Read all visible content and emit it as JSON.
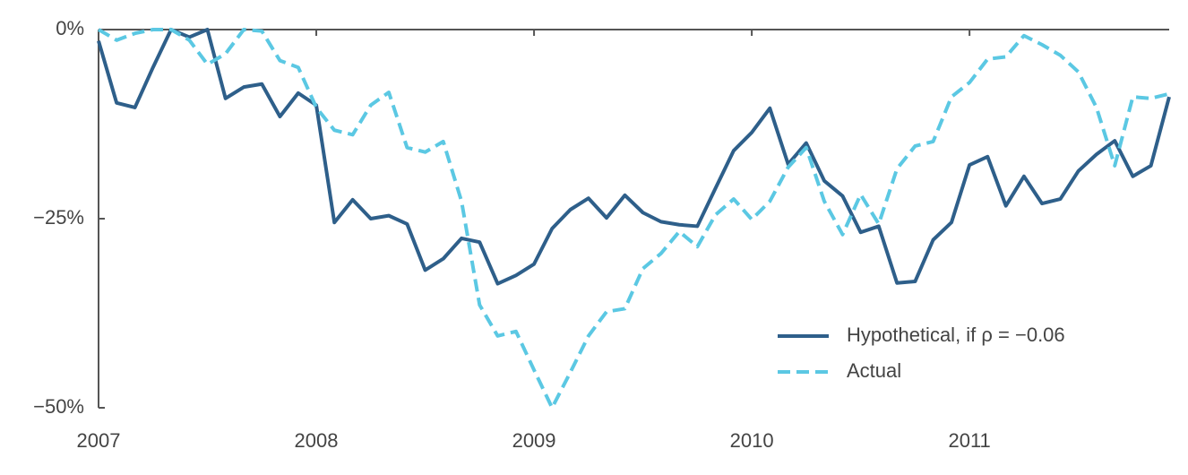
{
  "chart_data": {
    "type": "line",
    "x": [
      2007,
      2007.083,
      2007.167,
      2007.25,
      2007.333,
      2007.417,
      2007.5,
      2007.583,
      2007.667,
      2007.75,
      2007.833,
      2007.917,
      2008,
      2008.083,
      2008.167,
      2008.25,
      2008.333,
      2008.417,
      2008.5,
      2008.583,
      2008.667,
      2008.75,
      2008.833,
      2008.917,
      2009,
      2009.083,
      2009.167,
      2009.25,
      2009.333,
      2009.417,
      2009.5,
      2009.583,
      2009.667,
      2009.75,
      2009.833,
      2009.917,
      2010,
      2010.083,
      2010.167,
      2010.25,
      2010.333,
      2010.417,
      2010.5,
      2010.583,
      2010.667,
      2010.75,
      2010.833,
      2010.917,
      2011,
      2011.083,
      2011.167,
      2011.25,
      2011.333,
      2011.417,
      2011.5,
      2011.583,
      2011.667,
      2011.75,
      2011.833,
      2011.917
    ],
    "series": [
      {
        "name": "Hypothetical, if ρ = −0.06",
        "color": "#2e5f8a",
        "dash": false,
        "values": [
          -1.5,
          -9.7,
          -10.3,
          -5,
          0,
          -1,
          0,
          -9.1,
          -7.6,
          -7.2,
          -11.5,
          -8.4,
          -10,
          -25.5,
          -22.5,
          -25,
          -24.6,
          -25.7,
          -31.8,
          -30.3,
          -27.6,
          -28.1,
          -33.6,
          -32.5,
          -31,
          -26.3,
          -23.8,
          -22.3,
          -24.9,
          -21.9,
          -24.2,
          -25.4,
          -25.8,
          -26,
          -21,
          -16,
          -13.6,
          -10.4,
          -17.8,
          -15,
          -20,
          -22,
          -26.8,
          -26,
          -33.5,
          -33.3,
          -27.8,
          -25.5,
          -17.9,
          -16.8,
          -23.3,
          -19.4,
          -23,
          -22.4,
          -18.7,
          -16.5,
          -14.7,
          -19.4,
          -18,
          -8.9
        ]
      },
      {
        "name": "Actual",
        "color": "#5bc8e3",
        "dash": true,
        "values": [
          0,
          -1.4,
          -0.5,
          0,
          0,
          -1.4,
          -4.6,
          -3.2,
          0,
          -0.2,
          -4.1,
          -5,
          -10.3,
          -13.3,
          -13.9,
          -10,
          -8.3,
          -15.6,
          -16.2,
          -14.8,
          -22.7,
          -36.4,
          -40.5,
          -39.9,
          -45,
          -50,
          -45.3,
          -40.5,
          -37.3,
          -36.9,
          -31.6,
          -29.6,
          -26.7,
          -28.7,
          -24.5,
          -22.4,
          -25.1,
          -22.7,
          -18.2,
          -15.6,
          -22.7,
          -27.1,
          -21.8,
          -25.7,
          -18.4,
          -15.4,
          -14.8,
          -8.9,
          -7,
          -3.9,
          -3.6,
          -0.8,
          -2,
          -3.4,
          -5.6,
          -10.3,
          -18,
          -8.9,
          -9.1,
          -8.5
        ]
      }
    ],
    "xlim": [
      2007,
      2011.917
    ],
    "xticks": [
      2007,
      2008,
      2009,
      2010,
      2011
    ],
    "ylim": [
      -50,
      0
    ],
    "yticks": [
      {
        "value": -50,
        "label": "−50%"
      },
      {
        "value": -25,
        "label": "−25%"
      },
      {
        "value": 0,
        "label": "0%"
      }
    ],
    "grid": false,
    "legend": "lower right"
  }
}
